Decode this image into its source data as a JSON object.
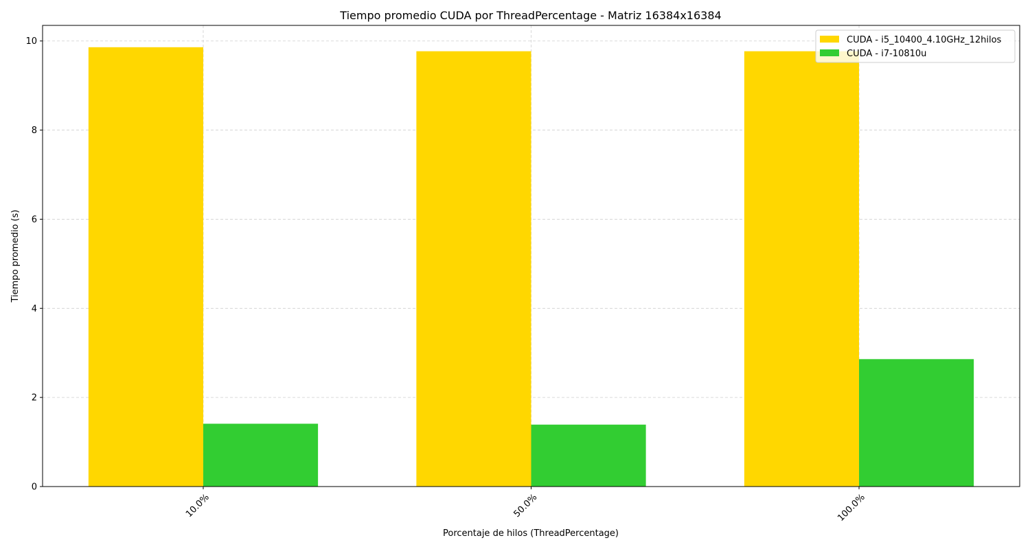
{
  "chart_data": {
    "type": "bar",
    "title": "Tiempo promedio CUDA por ThreadPercentage - Matriz 16384x16384",
    "xlabel": "Porcentaje de hilos (ThreadPercentage)",
    "ylabel": "Tiempo promedio (s)",
    "categories": [
      "10.0%",
      "50.0%",
      "100.0%"
    ],
    "series": [
      {
        "name": "CUDA - i5_10400_4.10GHz_12hilos",
        "color": "#FFD700",
        "values": [
          9.86,
          9.77,
          9.77
        ]
      },
      {
        "name": "CUDA - i7-10810u",
        "color": "#32CD32",
        "values": [
          1.41,
          1.39,
          2.86
        ]
      }
    ],
    "ylim": [
      0,
      10.35
    ],
    "yticks": [
      0,
      2,
      4,
      6,
      8,
      10
    ],
    "ytick_labels": [
      "0",
      "2",
      "4",
      "6",
      "8",
      "10"
    ],
    "grid": true,
    "legend_position": "top-right"
  }
}
